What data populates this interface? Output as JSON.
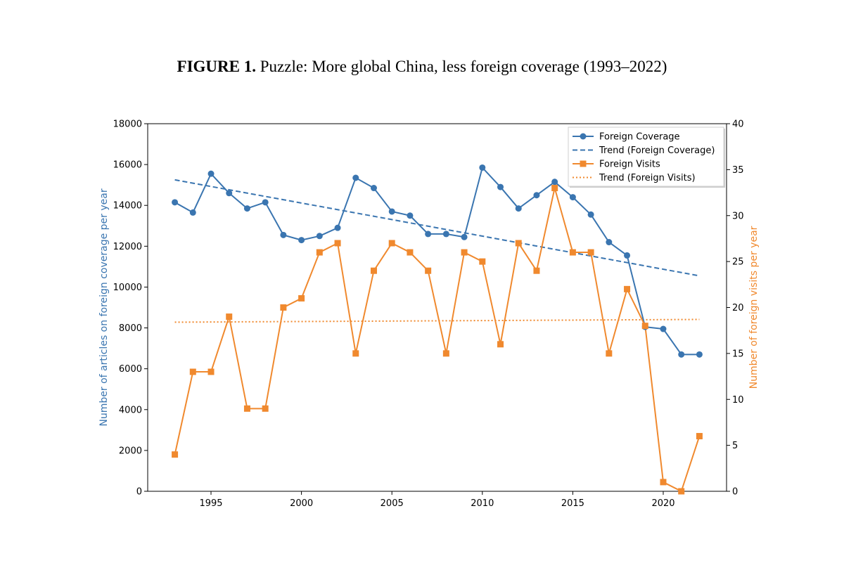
{
  "figure": {
    "label": "FIGURE 1.",
    "title": "Puzzle: More global China, less foreign coverage (1993–2022)"
  },
  "colors": {
    "coverage": "#3a75b0",
    "visits": "#f0892e"
  },
  "chart_data": {
    "type": "line",
    "x": [
      1993,
      1994,
      1995,
      1996,
      1997,
      1998,
      1999,
      2000,
      2001,
      2002,
      2003,
      2004,
      2005,
      2006,
      2007,
      2008,
      2009,
      2010,
      2011,
      2012,
      2013,
      2014,
      2015,
      2016,
      2017,
      2018,
      2019,
      2020,
      2021,
      2022
    ],
    "xticks": [
      1995,
      2000,
      2005,
      2010,
      2015,
      2020
    ],
    "xlim": [
      1991.5,
      2023.5
    ],
    "ylabel_left": "Number of articles on foreign coverage per year",
    "ylabel_right": "Number of foreign visits per year",
    "ylim_left": [
      0,
      18000
    ],
    "yticks_left": [
      0,
      2000,
      4000,
      6000,
      8000,
      10000,
      12000,
      14000,
      16000,
      18000
    ],
    "ylim_right": [
      0,
      40
    ],
    "yticks_right": [
      0,
      5,
      10,
      15,
      20,
      25,
      30,
      35,
      40
    ],
    "legend_position": "top-right",
    "grid": false,
    "series": [
      {
        "name": "Foreign Coverage",
        "axis": "left",
        "style": "solid",
        "marker": "circle",
        "values": [
          14150,
          13650,
          15550,
          14600,
          13850,
          14150,
          12550,
          12300,
          12500,
          12900,
          15350,
          14850,
          13700,
          13500,
          12600,
          12600,
          12450,
          15850,
          14900,
          13850,
          14500,
          15150,
          14400,
          13550,
          12200,
          11550,
          8050,
          7950,
          6700,
          6700
        ]
      },
      {
        "name": "Trend (Foreign Coverage)",
        "axis": "left",
        "style": "dashed",
        "marker": "none",
        "start": [
          1993,
          15250
        ],
        "end": [
          2022,
          10550
        ]
      },
      {
        "name": "Foreign Visits",
        "axis": "right",
        "style": "solid",
        "marker": "square",
        "values": [
          4,
          13,
          13,
          19,
          9,
          9,
          20,
          21,
          26,
          27,
          15,
          24,
          27,
          26,
          24,
          15,
          26,
          25,
          16,
          27,
          24,
          33,
          26,
          26,
          15,
          22,
          18,
          1,
          0,
          6
        ]
      },
      {
        "name": "Trend (Foreign Visits)",
        "axis": "right",
        "style": "dotted",
        "marker": "none",
        "start": [
          1993,
          18.4
        ],
        "end": [
          2022,
          18.7
        ]
      }
    ]
  }
}
